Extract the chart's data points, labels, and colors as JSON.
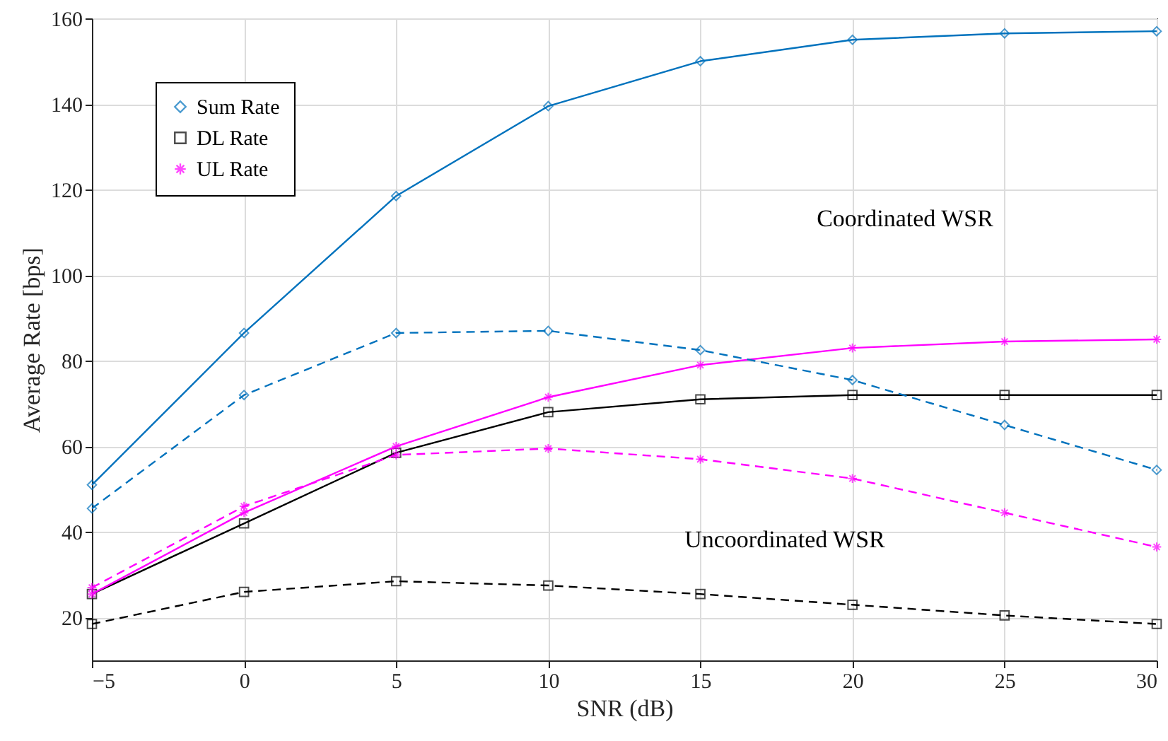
{
  "chart_data": {
    "type": "line",
    "xlabel": "SNR (dB)",
    "ylabel": "Average Rate [bps]",
    "x": [
      -5,
      0,
      5,
      10,
      15,
      20,
      25,
      30
    ],
    "series": [
      {
        "name": "Sum Rate",
        "color": "#0072bd",
        "marker": "diamond",
        "line_style": "solid",
        "values": [
          51,
          86.5,
          118.5,
          139.5,
          150,
          155,
          156.5,
          157
        ]
      },
      {
        "name": "DL Rate",
        "color": "#000000",
        "marker": "square",
        "line_style": "solid",
        "values": [
          25.5,
          42,
          58.5,
          68,
          71,
          72,
          72,
          72
        ]
      },
      {
        "name": "UL Rate",
        "color": "#ff00ff",
        "marker": "cross",
        "line_style": "solid",
        "values": [
          25.5,
          44.5,
          60,
          71.5,
          79,
          83,
          84.5,
          85
        ]
      },
      {
        "color": "#0072bd",
        "marker": "diamond",
        "line_style": "dashed",
        "values": [
          45.5,
          72,
          86.5,
          87,
          82.5,
          75.5,
          65,
          54.5
        ]
      },
      {
        "color": "#000000",
        "marker": "square",
        "line_style": "dashed",
        "values": [
          18.5,
          26,
          28.5,
          27.5,
          25.5,
          23,
          20.5,
          18.5
        ]
      },
      {
        "color": "#ff00ff",
        "marker": "cross",
        "line_style": "dashed",
        "values": [
          27,
          46,
          58,
          59.5,
          57,
          52.5,
          44.5,
          36.5
        ]
      }
    ],
    "xlim": [
      -5,
      30
    ],
    "xticks": [
      -5,
      0,
      5,
      10,
      15,
      20,
      25,
      30
    ],
    "ylim": [
      10,
      160
    ],
    "yticks": [
      20,
      40,
      60,
      80,
      100,
      120,
      140,
      160
    ],
    "grid": true,
    "legend": "top left",
    "annotations": [
      "Coordinated WSR",
      "Uncoordinated WSR"
    ]
  }
}
